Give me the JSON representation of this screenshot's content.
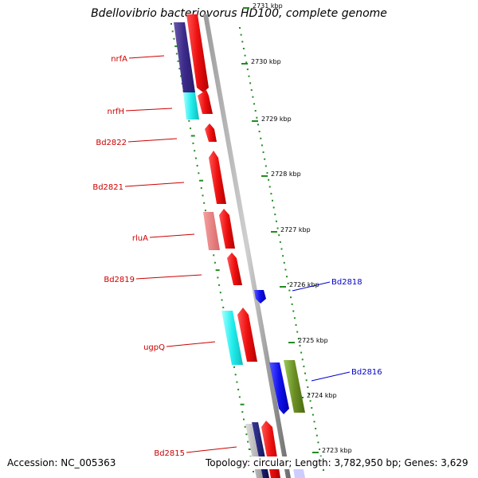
{
  "title": "Bdellovibrio bacteriovorus HD100, complete genome",
  "footer": {
    "accession": "Accession: NC_005363",
    "topology": "Topology: circular; Length: 3,782,950 bp; Genes: 3,629"
  },
  "colors": {
    "forward_cds": "#ee1111",
    "reverse_cds": "#1111ee",
    "forward_label": "#cc0000",
    "reverse_label": "#0000cc",
    "backbone": "#7a7a7a",
    "tick": "#228b22"
  },
  "ticks": [
    {
      "label": "2731 kbp"
    },
    {
      "label": "2730 kbp"
    },
    {
      "label": "2729 kbp"
    },
    {
      "label": "2728 kbp"
    },
    {
      "label": "2727 kbp"
    },
    {
      "label": "2726 kbp"
    },
    {
      "label": "2725 kbp"
    },
    {
      "label": "2724 kbp"
    },
    {
      "label": "2723 kbp"
    }
  ],
  "gene_labels_forward": [
    "nrfA",
    "nrfH",
    "Bd2822",
    "Bd2821",
    "rluA",
    "Bd2819",
    "ugpQ",
    "Bd2815"
  ],
  "gene_labels_reverse": [
    "Bd2818",
    "Bd2816"
  ]
}
